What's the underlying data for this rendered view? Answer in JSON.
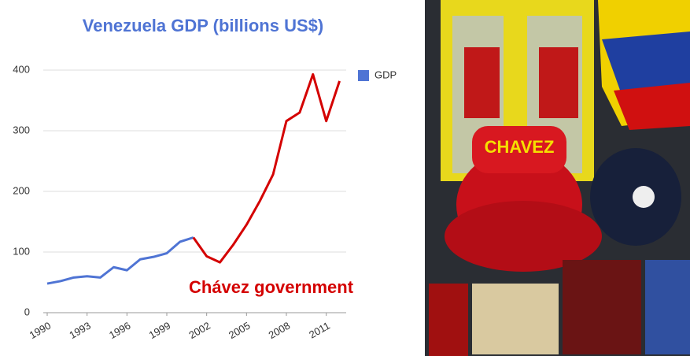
{
  "chart_data": {
    "type": "line",
    "title": "Venezuela GDP (billions US$)",
    "x": [
      1990,
      1991,
      1992,
      1993,
      1994,
      1995,
      1996,
      1997,
      1998,
      1999,
      2000,
      2001,
      2002,
      2003,
      2004,
      2005,
      2006,
      2007,
      2008,
      2009,
      2010,
      2011,
      2012
    ],
    "series": [
      {
        "name": "GDP",
        "color": "#4f74d4",
        "values": [
          48,
          52,
          58,
          60,
          58,
          75,
          70,
          88,
          92,
          98,
          117,
          124,
          null,
          null,
          null,
          null,
          null,
          null,
          null,
          null,
          null,
          null,
          null
        ]
      }
    ],
    "highlight": {
      "label": "Chávez government",
      "color": "#d40000",
      "values": [
        null,
        null,
        null,
        null,
        null,
        null,
        null,
        null,
        null,
        null,
        null,
        124,
        93,
        83,
        112,
        145,
        184,
        228,
        316,
        330,
        393,
        316,
        382
      ]
    },
    "xlim": [
      1990,
      2012.5
    ],
    "xticks": [
      1990,
      1993,
      1996,
      1999,
      2002,
      2005,
      2008,
      2011
    ],
    "ylim": [
      0,
      400
    ],
    "yticks": [
      0,
      100,
      200,
      300,
      400
    ],
    "grid": true
  }
}
